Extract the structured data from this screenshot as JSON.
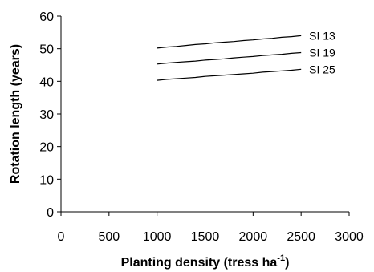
{
  "chart_data": {
    "type": "line",
    "title": "",
    "xlabel": "Planting density (tress ha",
    "xlabel_superscript": "-1",
    "xlabel_suffix": ")",
    "ylabel": "Rotation length (years)",
    "xlim": [
      0,
      3000
    ],
    "ylim": [
      0,
      60
    ],
    "xticks": [
      0,
      500,
      1000,
      1500,
      2000,
      2500,
      3000
    ],
    "yticks": [
      0,
      10,
      20,
      30,
      40,
      50,
      60
    ],
    "grid": false,
    "legend": "inline-right",
    "line_color": "#000000",
    "series": [
      {
        "name": "SI 13",
        "x": [
          1000,
          1100,
          1200,
          1300,
          1400,
          1500,
          1600,
          1700,
          1800,
          1900,
          2000,
          2100,
          2200,
          2300,
          2400,
          2500
        ],
        "values": [
          50.2,
          50.5,
          50.7,
          51.0,
          51.3,
          51.5,
          51.8,
          52.0,
          52.2,
          52.5,
          52.7,
          53.0,
          53.2,
          53.5,
          53.7,
          54.0
        ]
      },
      {
        "name": "SI 19",
        "x": [
          1000,
          1100,
          1200,
          1300,
          1400,
          1500,
          1600,
          1700,
          1800,
          1900,
          2000,
          2100,
          2200,
          2300,
          2400,
          2500
        ],
        "values": [
          45.3,
          45.6,
          45.8,
          46.0,
          46.2,
          46.5,
          46.7,
          46.9,
          47.2,
          47.4,
          47.6,
          47.9,
          48.1,
          48.3,
          48.6,
          48.8
        ]
      },
      {
        "name": "SI 25",
        "x": [
          1000,
          1100,
          1200,
          1300,
          1400,
          1500,
          1600,
          1700,
          1800,
          1900,
          2000,
          2100,
          2200,
          2300,
          2400,
          2500
        ],
        "values": [
          40.3,
          40.6,
          40.8,
          41.0,
          41.2,
          41.5,
          41.7,
          41.9,
          42.1,
          42.3,
          42.5,
          42.8,
          43.0,
          43.2,
          43.4,
          43.7
        ]
      }
    ]
  }
}
